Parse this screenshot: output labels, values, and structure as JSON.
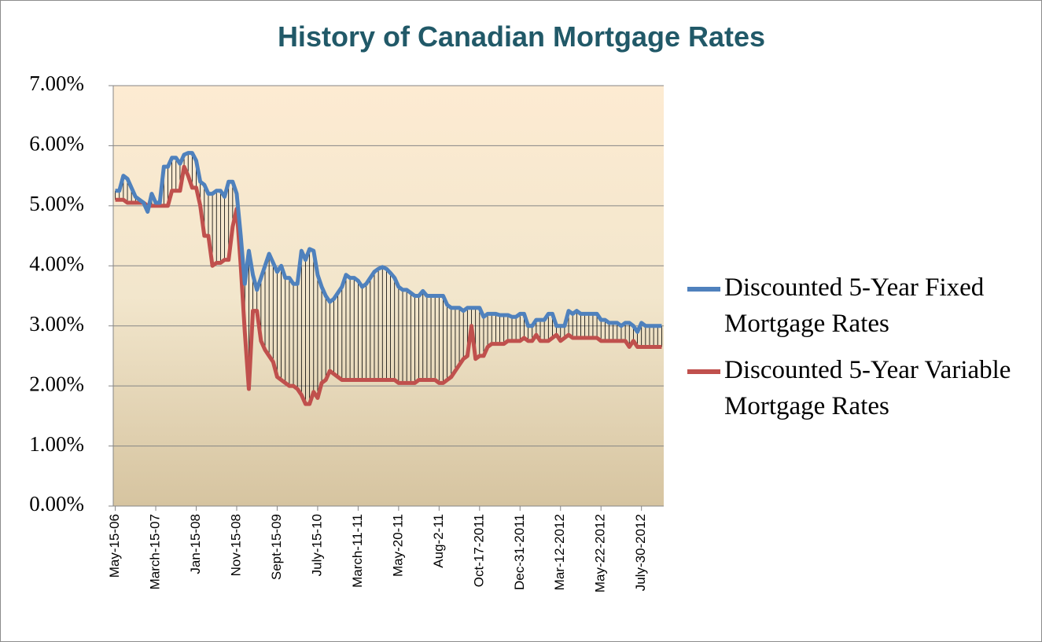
{
  "chart_data": {
    "type": "line",
    "title": "History of Canadian Mortgage Rates",
    "categories": [
      "May-15-06",
      null,
      null,
      null,
      null,
      null,
      null,
      null,
      null,
      null,
      "March-15-07",
      null,
      null,
      null,
      null,
      null,
      null,
      null,
      null,
      null,
      "Jan-15-08",
      null,
      null,
      null,
      null,
      null,
      null,
      null,
      null,
      null,
      "Nov-15-08",
      null,
      null,
      null,
      null,
      null,
      null,
      null,
      null,
      null,
      "Sept-15-09",
      null,
      null,
      null,
      null,
      null,
      null,
      null,
      null,
      null,
      "July-15-10",
      null,
      null,
      null,
      null,
      null,
      null,
      null,
      null,
      null,
      "March-11-11",
      null,
      null,
      null,
      null,
      null,
      null,
      null,
      null,
      null,
      "May-20-11",
      null,
      null,
      null,
      null,
      null,
      null,
      null,
      null,
      null,
      "Aug-2-11",
      null,
      null,
      null,
      null,
      null,
      null,
      null,
      null,
      null,
      "Oct-17-2011",
      null,
      null,
      null,
      null,
      null,
      null,
      null,
      null,
      null,
      "Dec-31-2011",
      null,
      null,
      null,
      null,
      null,
      null,
      null,
      null,
      null,
      "Mar-12-2012",
      null,
      null,
      null,
      null,
      null,
      null,
      null,
      null,
      null,
      "May-22-2012",
      null,
      null,
      null,
      null,
      null,
      null,
      null,
      null,
      null,
      "July-30-2012",
      null,
      null,
      null,
      null,
      null
    ],
    "series": [
      {
        "name": "Discounted 5-Year Fixed Mortgage Rates",
        "color": "#4f81bd",
        "values": [
          5.25,
          5.25,
          5.5,
          5.45,
          5.3,
          5.15,
          5.1,
          5.05,
          4.9,
          5.2,
          5.05,
          5.05,
          5.65,
          5.65,
          5.8,
          5.8,
          5.7,
          5.85,
          5.88,
          5.88,
          5.75,
          5.4,
          5.35,
          5.2,
          5.2,
          5.25,
          5.25,
          5.15,
          5.4,
          5.4,
          5.2,
          4.5,
          3.7,
          4.25,
          3.85,
          3.6,
          3.8,
          4.0,
          4.2,
          4.05,
          3.9,
          4.0,
          3.8,
          3.8,
          3.7,
          3.7,
          4.25,
          4.1,
          4.28,
          4.25,
          3.85,
          3.65,
          3.5,
          3.4,
          3.45,
          3.55,
          3.65,
          3.85,
          3.8,
          3.8,
          3.75,
          3.65,
          3.7,
          3.8,
          3.9,
          3.95,
          3.98,
          3.95,
          3.88,
          3.8,
          3.65,
          3.6,
          3.6,
          3.55,
          3.5,
          3.5,
          3.58,
          3.5,
          3.5,
          3.5,
          3.5,
          3.5,
          3.35,
          3.3,
          3.3,
          3.3,
          3.25,
          3.3,
          3.3,
          3.3,
          3.3,
          3.15,
          3.2,
          3.2,
          3.2,
          3.18,
          3.18,
          3.18,
          3.15,
          3.15,
          3.2,
          3.2,
          3.0,
          3.0,
          3.1,
          3.1,
          3.1,
          3.2,
          3.2,
          3.0,
          3.0,
          3.0,
          3.25,
          3.2,
          3.25,
          3.2,
          3.2,
          3.2,
          3.2,
          3.2,
          3.1,
          3.1,
          3.05,
          3.05,
          3.05,
          3.0,
          3.05,
          3.05,
          3.0,
          2.9,
          3.05,
          3.0,
          3.0,
          3.0,
          3.0,
          3.0
        ]
      },
      {
        "name": "Discounted 5-Year Variable Mortgage Rates",
        "color": "#c0504d",
        "values": [
          5.1,
          5.1,
          5.1,
          5.05,
          5.05,
          5.05,
          5.05,
          5.05,
          5.0,
          5.0,
          5.0,
          5.0,
          5.0,
          5.0,
          5.25,
          5.25,
          5.25,
          5.65,
          5.5,
          5.3,
          5.3,
          5.0,
          4.5,
          4.5,
          4.0,
          4.05,
          4.05,
          4.1,
          4.1,
          4.65,
          4.95,
          4.0,
          2.9,
          1.95,
          3.25,
          3.25,
          2.75,
          2.6,
          2.5,
          2.4,
          2.15,
          2.1,
          2.05,
          2.0,
          2.0,
          1.95,
          1.85,
          1.7,
          1.7,
          1.9,
          1.8,
          2.05,
          2.1,
          2.25,
          2.2,
          2.15,
          2.1,
          2.1,
          2.1,
          2.1,
          2.1,
          2.1,
          2.1,
          2.1,
          2.1,
          2.1,
          2.1,
          2.1,
          2.1,
          2.1,
          2.05,
          2.05,
          2.05,
          2.05,
          2.05,
          2.1,
          2.1,
          2.1,
          2.1,
          2.1,
          2.05,
          2.05,
          2.1,
          2.15,
          2.25,
          2.35,
          2.45,
          2.5,
          3.0,
          2.45,
          2.5,
          2.5,
          2.65,
          2.7,
          2.7,
          2.7,
          2.7,
          2.75,
          2.75,
          2.75,
          2.75,
          2.8,
          2.75,
          2.75,
          2.85,
          2.75,
          2.75,
          2.75,
          2.8,
          2.85,
          2.75,
          2.8,
          2.85,
          2.8,
          2.8,
          2.8,
          2.8,
          2.8,
          2.8,
          2.8,
          2.75,
          2.75,
          2.75,
          2.75,
          2.75,
          2.75,
          2.75,
          2.65,
          2.75,
          2.65,
          2.65,
          2.65,
          2.65,
          2.65,
          2.65,
          2.65
        ]
      }
    ],
    "ylim": [
      0,
      7
    ],
    "yticks": [
      {
        "value": 0,
        "label": "0.00%"
      },
      {
        "value": 1,
        "label": "1.00%"
      },
      {
        "value": 2,
        "label": "2.00%"
      },
      {
        "value": 3,
        "label": "3.00%"
      },
      {
        "value": 4,
        "label": "4.00%"
      },
      {
        "value": 5,
        "label": "5.00%"
      },
      {
        "value": 6,
        "label": "6.00%"
      },
      {
        "value": 7,
        "label": "7.00%"
      }
    ],
    "grid": true,
    "high_low_lines": true,
    "legend": "right"
  }
}
